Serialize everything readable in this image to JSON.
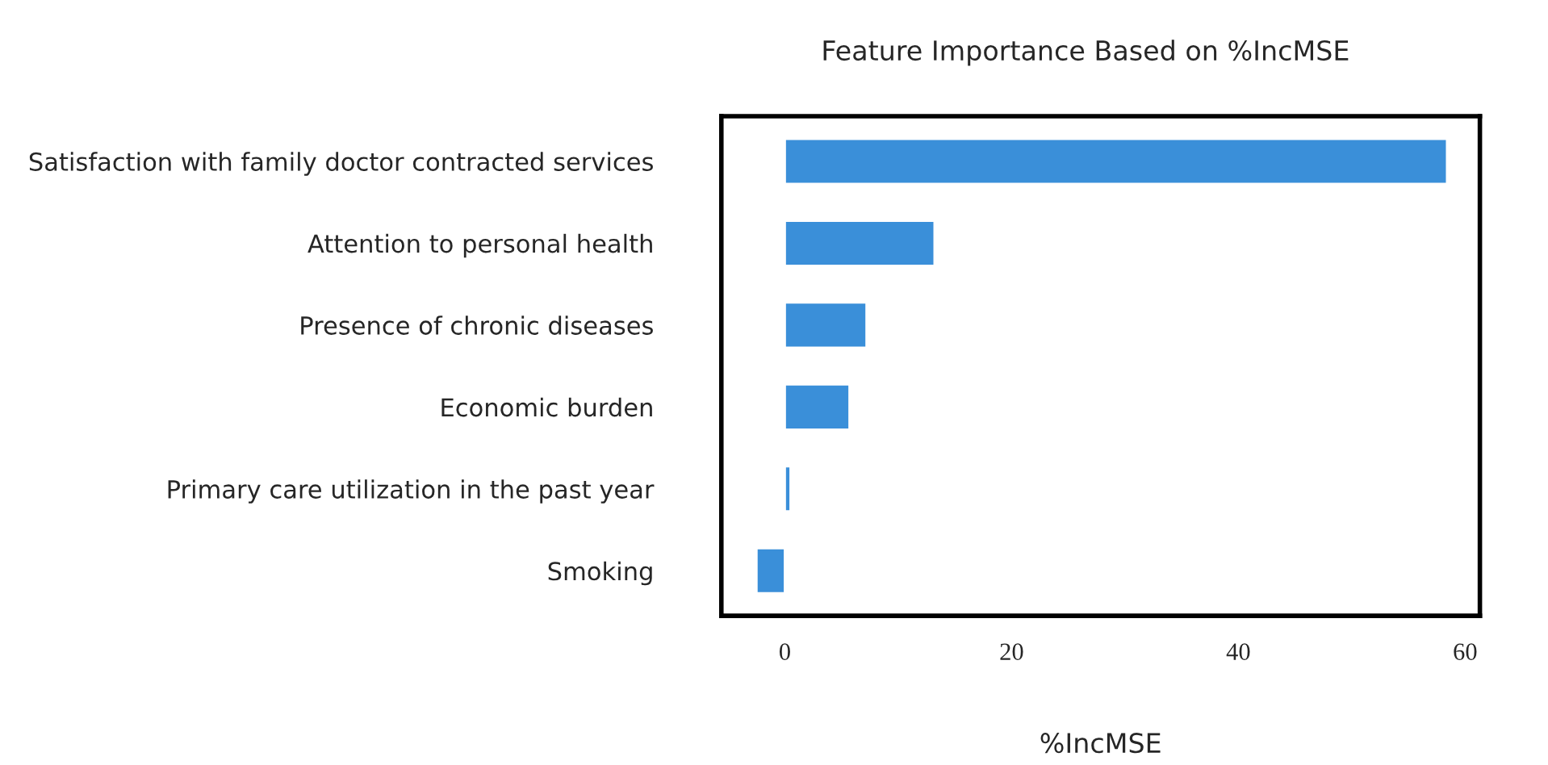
{
  "chart_data": {
    "type": "bar",
    "orientation": "horizontal",
    "title": "Feature Importance Based on %IncMSE",
    "xlabel": "%IncMSE",
    "categories": [
      "Satisfaction with family doctor contracted services",
      "Attention to personal health",
      "Presence of chronic diseases",
      "Economic burden",
      "Primary care utilization in the past year",
      "Smoking"
    ],
    "values": [
      58.4,
      13.2,
      7.2,
      5.7,
      0.5,
      -2.5
    ],
    "color": "#3a8fd9",
    "xlim": [
      -5.6,
      61.3
    ],
    "xticks": [
      0,
      20,
      40,
      60
    ],
    "grid": false
  }
}
